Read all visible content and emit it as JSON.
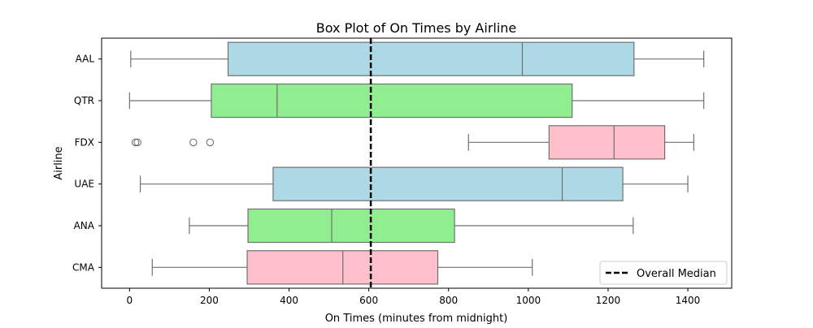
{
  "chart_data": {
    "type": "boxplot",
    "orientation": "horizontal",
    "title": "Box Plot of On Times by Airline",
    "xlabel": "On Times (minutes from midnight)",
    "ylabel": "Airline",
    "xlim": [
      -70,
      1510
    ],
    "xticks": [
      0,
      200,
      400,
      600,
      800,
      1000,
      1200,
      1400
    ],
    "grid": false,
    "categories": [
      "AAL",
      "QTR",
      "FDX",
      "UAE",
      "ANA",
      "CMA"
    ],
    "boxes": [
      {
        "category": "AAL",
        "whisker_low": 3,
        "q1": 247,
        "median": 985,
        "q3": 1265,
        "whisker_high": 1440,
        "outliers": [],
        "fill": "#add8e6"
      },
      {
        "category": "QTR",
        "whisker_low": 0,
        "q1": 205,
        "median": 370,
        "q3": 1110,
        "whisker_high": 1440,
        "outliers": [],
        "fill": "#90ee90"
      },
      {
        "category": "FDX",
        "whisker_low": 850,
        "q1": 1052,
        "median": 1215,
        "q3": 1342,
        "whisker_high": 1415,
        "outliers": [
          15,
          20,
          160,
          202
        ],
        "fill": "#ffc0cb"
      },
      {
        "category": "UAE",
        "whisker_low": 27,
        "q1": 360,
        "median": 1085,
        "q3": 1237,
        "whisker_high": 1400,
        "outliers": [],
        "fill": "#add8e6"
      },
      {
        "category": "ANA",
        "whisker_low": 150,
        "q1": 297,
        "median": 507,
        "q3": 815,
        "whisker_high": 1263,
        "outliers": [],
        "fill": "#90ee90"
      },
      {
        "category": "CMA",
        "whisker_low": 57,
        "q1": 295,
        "median": 535,
        "q3": 773,
        "whisker_high": 1010,
        "outliers": [],
        "fill": "#ffc0cb"
      }
    ],
    "reference_line": {
      "x": 605,
      "label": "Overall Median",
      "style": "dashed",
      "color": "#000000"
    },
    "legend": {
      "position": "bottom-right",
      "entries": [
        "Overall Median"
      ]
    }
  }
}
